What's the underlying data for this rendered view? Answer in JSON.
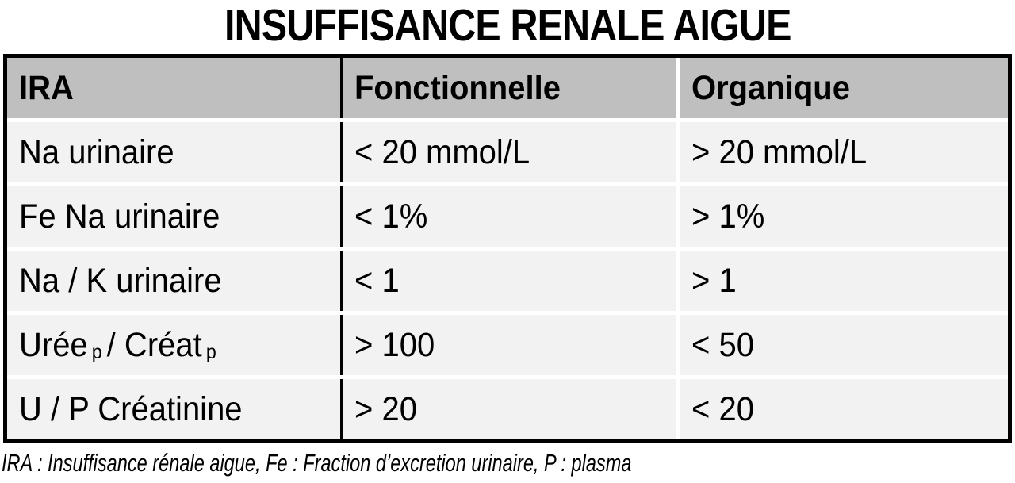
{
  "title": "INSUFFISANCE RENALE AIGUE",
  "table": {
    "header": {
      "ira": "IRA",
      "fonctionnelle": "Fonctionnelle",
      "organique": "Organique"
    },
    "rows": [
      {
        "label": "Na urinaire",
        "fonctionnelle": "< 20 mmol/L",
        "organique": "> 20 mmol/L"
      },
      {
        "label": "Fe Na urinaire",
        "fonctionnelle": "< 1%",
        "organique": "> 1%"
      },
      {
        "label": "Na / K urinaire",
        "fonctionnelle": "< 1",
        "organique": "> 1"
      },
      {
        "label_parts": {
          "base1": "Urée",
          "sub1": "p",
          "base2": "/ Créat",
          "sub2": "p"
        },
        "fonctionnelle": "> 100",
        "organique": "< 50"
      },
      {
        "label": "U / P Créatinine",
        "fonctionnelle": "> 20",
        "organique": "< 20"
      }
    ]
  },
  "footnote": "IRA : Insuffisance rénale aigue, Fe : Fraction d’excretion urinaire, P : plasma",
  "colors": {
    "header_bg": "#bfbfbf",
    "row_bg": "#f2f2f2",
    "border": "#000000",
    "text": "#000000",
    "page_bg": "#ffffff",
    "divider": "#ffffff"
  }
}
